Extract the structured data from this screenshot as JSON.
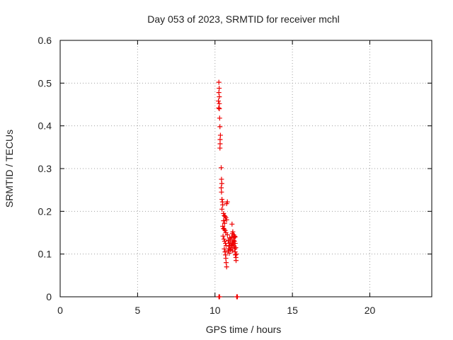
{
  "chart_data": {
    "type": "scatter",
    "title": "Day 053 of 2023, SRMTID for receiver mchl",
    "xlabel": "GPS time / hours",
    "ylabel": "SRMTID / TECUs",
    "xlim": [
      0,
      24
    ],
    "ylim": [
      0,
      0.6
    ],
    "x_ticks": [
      0,
      5,
      10,
      15,
      20
    ],
    "x_tick_labels": [
      "0",
      "5",
      "10",
      "15",
      "20"
    ],
    "y_ticks": [
      0,
      0.1,
      0.2,
      0.3,
      0.4,
      0.5,
      0.6
    ],
    "y_tick_labels": [
      "0",
      "0.1",
      "0.2",
      "0.3",
      "0.4",
      "0.5",
      "0.6"
    ],
    "grid": true,
    "legend": "none",
    "marker": "plus",
    "colors": {
      "series": "#ee0000",
      "grid": "#a0a0a0",
      "axis": "#000000",
      "text": "#222222"
    },
    "series": [
      {
        "name": "SRMTID",
        "points": [
          [
            10.25,
            0.502
          ],
          [
            10.27,
            0.488
          ],
          [
            10.25,
            0.478
          ],
          [
            10.28,
            0.468
          ],
          [
            10.22,
            0.458
          ],
          [
            10.28,
            0.452
          ],
          [
            10.24,
            0.442
          ],
          [
            10.28,
            0.44
          ],
          [
            10.3,
            0.418
          ],
          [
            10.32,
            0.398
          ],
          [
            10.35,
            0.378
          ],
          [
            10.33,
            0.368
          ],
          [
            10.33,
            0.358
          ],
          [
            10.32,
            0.348
          ],
          [
            10.4,
            0.302
          ],
          [
            10.42,
            0.275
          ],
          [
            10.44,
            0.265
          ],
          [
            10.4,
            0.255
          ],
          [
            10.42,
            0.245
          ],
          [
            10.45,
            0.228
          ],
          [
            10.48,
            0.222
          ],
          [
            10.5,
            0.215
          ],
          [
            10.8,
            0.222
          ],
          [
            10.75,
            0.218
          ],
          [
            10.45,
            0.205
          ],
          [
            10.55,
            0.195
          ],
          [
            10.6,
            0.19
          ],
          [
            10.65,
            0.188
          ],
          [
            10.7,
            0.185
          ],
          [
            10.75,
            0.18
          ],
          [
            10.55,
            0.178
          ],
          [
            10.62,
            0.172
          ],
          [
            10.5,
            0.165
          ],
          [
            10.55,
            0.16
          ],
          [
            10.6,
            0.158
          ],
          [
            10.65,
            0.155
          ],
          [
            10.7,
            0.15
          ],
          [
            10.52,
            0.142
          ],
          [
            10.58,
            0.135
          ],
          [
            10.62,
            0.13
          ],
          [
            10.68,
            0.125
          ],
          [
            10.72,
            0.12
          ],
          [
            10.6,
            0.112
          ],
          [
            10.65,
            0.105
          ],
          [
            10.68,
            0.098
          ],
          [
            10.7,
            0.09
          ],
          [
            10.72,
            0.08
          ],
          [
            10.75,
            0.07
          ],
          [
            10.85,
            0.132
          ],
          [
            10.9,
            0.125
          ],
          [
            10.95,
            0.118
          ],
          [
            10.85,
            0.108
          ],
          [
            10.92,
            0.102
          ],
          [
            11.0,
            0.11
          ],
          [
            11.05,
            0.12
          ],
          [
            11.1,
            0.128
          ],
          [
            11.0,
            0.135
          ],
          [
            11.08,
            0.14
          ],
          [
            11.12,
            0.148
          ],
          [
            11.15,
            0.152
          ],
          [
            11.2,
            0.145
          ],
          [
            11.22,
            0.138
          ],
          [
            11.25,
            0.13
          ],
          [
            11.18,
            0.125
          ],
          [
            11.24,
            0.118
          ],
          [
            11.28,
            0.112
          ],
          [
            11.3,
            0.105
          ],
          [
            11.32,
            0.098
          ],
          [
            11.35,
            0.092
          ],
          [
            11.36,
            0.085
          ],
          [
            11.38,
            0.1
          ],
          [
            11.1,
            0.17
          ],
          [
            11.05,
            0.115
          ],
          [
            11.15,
            0.122
          ],
          [
            11.2,
            0.132
          ],
          [
            11.26,
            0.142
          ],
          [
            11.3,
            0.125
          ],
          [
            11.34,
            0.115
          ],
          [
            11.3,
            0.14
          ],
          [
            10.98,
            0.128
          ],
          [
            10.95,
            0.138
          ],
          [
            10.8,
            0.145
          ],
          [
            10.88,
            0.112
          ],
          [
            11.12,
            0.108
          ],
          [
            10.25,
            0.0
          ],
          [
            10.3,
            0.0
          ],
          [
            11.4,
            0.0
          ],
          [
            11.45,
            0.0
          ]
        ]
      }
    ]
  }
}
